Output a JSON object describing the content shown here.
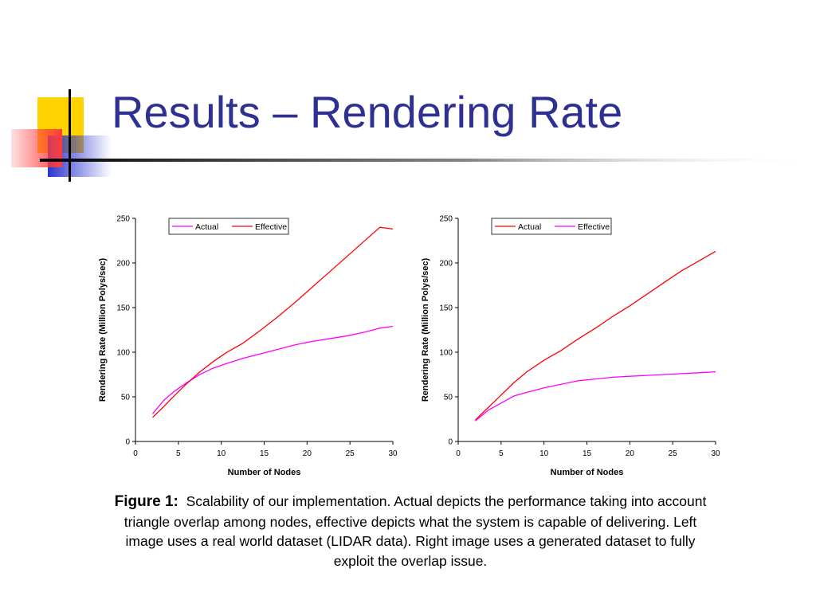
{
  "slide": {
    "title": "Results – Rendering Rate",
    "caption": {
      "label": "Figure 1:",
      "text": "Scalability of our implementation.  Actual depicts the performance taking into account triangle overlap among nodes, effective depicts what the system is capable of delivering. Left image uses a real world dataset (LIDAR data). Right image uses a generated dataset to fully exploit the overlap issue."
    },
    "colors": {
      "title": "#2e3192",
      "decor_yellow": "#ffd200",
      "decor_blue": "#2b35cf",
      "decor_red": "#ff3c3c"
    }
  },
  "chart_data": [
    {
      "type": "line",
      "title": "",
      "xlabel": "Number of Nodes",
      "ylabel": "Rendering Rate (Million Polys/sec)",
      "xlim": [
        0,
        30
      ],
      "ylim": [
        0,
        250
      ],
      "xticks": [
        0,
        5,
        10,
        15,
        20,
        25,
        30
      ],
      "yticks": [
        0,
        50,
        100,
        150,
        200,
        250
      ],
      "legend_position": "top-center",
      "grid": false,
      "series": [
        {
          "name": "Actual",
          "color": "#ff00ff",
          "x": [
            2,
            3.3,
            4.5,
            6,
            7.5,
            9,
            10.5,
            12.5,
            14.5,
            16.5,
            18.5,
            20.5,
            22.5,
            24.5,
            26.5,
            28.5,
            30
          ],
          "y": [
            31,
            46,
            56,
            66,
            75,
            82,
            87,
            93,
            98,
            103,
            108,
            112,
            115,
            118,
            122,
            127,
            129
          ]
        },
        {
          "name": "Effective",
          "color": "#ff0000",
          "x": [
            2,
            3.3,
            4.5,
            6,
            7.5,
            9,
            10.5,
            12.5,
            14.5,
            16.5,
            18.5,
            20.5,
            22.5,
            24.5,
            26.5,
            28.5,
            30
          ],
          "y": [
            27,
            39,
            51,
            65,
            78,
            89,
            99,
            110,
            124,
            139,
            155,
            172,
            189,
            206,
            223,
            240,
            238
          ]
        }
      ]
    },
    {
      "type": "line",
      "title": "",
      "xlabel": "Number of Nodes",
      "ylabel": "Rendering Rate (Million Polys/sec)",
      "xlim": [
        0,
        30
      ],
      "ylim": [
        0,
        250
      ],
      "xticks": [
        0,
        5,
        10,
        15,
        20,
        25,
        30
      ],
      "yticks": [
        0,
        50,
        100,
        150,
        200,
        250
      ],
      "legend_position": "top-center",
      "grid": false,
      "series": [
        {
          "name": "Actual",
          "color": "#ff0000",
          "x": [
            2,
            3.5,
            5,
            6.5,
            8,
            10,
            12,
            14,
            16,
            18,
            20,
            22,
            24,
            26,
            28,
            30
          ],
          "y": [
            24,
            38,
            52,
            66,
            78,
            91,
            102,
            115,
            127,
            140,
            152,
            165,
            178,
            191,
            202,
            213
          ]
        },
        {
          "name": "Effective",
          "color": "#ff00ff",
          "x": [
            2,
            3.5,
            5,
            6.5,
            8,
            10,
            12,
            14,
            16,
            18,
            20,
            22,
            24,
            26,
            28,
            30
          ],
          "y": [
            23,
            35,
            43,
            51,
            55,
            60,
            64,
            68,
            70,
            72,
            73,
            74,
            75,
            76,
            77,
            78
          ]
        }
      ]
    }
  ]
}
